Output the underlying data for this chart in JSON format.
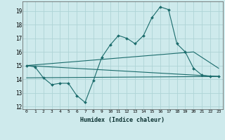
{
  "xlabel": "Humidex (Indice chaleur)",
  "ylabel": "",
  "background_color": "#ceeaec",
  "grid_color": "#aed4d6",
  "line_color": "#1a6b6b",
  "xlim": [
    -0.5,
    23.5
  ],
  "ylim": [
    11.8,
    19.7
  ],
  "yticks": [
    12,
    13,
    14,
    15,
    16,
    17,
    18,
    19
  ],
  "xticks": [
    0,
    1,
    2,
    3,
    4,
    5,
    6,
    7,
    8,
    9,
    10,
    11,
    12,
    13,
    14,
    15,
    16,
    17,
    18,
    19,
    20,
    21,
    22,
    23
  ],
  "line1_x": [
    0,
    1,
    2,
    3,
    4,
    5,
    6,
    7,
    8,
    9,
    10,
    11,
    12,
    13,
    14,
    15,
    16,
    17,
    18,
    19,
    20,
    21,
    22,
    23
  ],
  "line1_y": [
    15.0,
    14.9,
    14.1,
    13.6,
    13.7,
    13.7,
    12.8,
    12.3,
    13.9,
    15.6,
    16.5,
    17.2,
    17.0,
    16.6,
    17.2,
    18.5,
    19.3,
    19.1,
    16.6,
    16.0,
    14.8,
    14.3,
    14.2,
    14.2
  ],
  "line2_x": [
    0,
    23
  ],
  "line2_y": [
    15.0,
    14.2
  ],
  "line3_x": [
    0,
    20,
    23
  ],
  "line3_y": [
    15.0,
    16.0,
    14.8
  ],
  "line4_x": [
    0,
    23
  ],
  "line4_y": [
    14.1,
    14.2
  ]
}
